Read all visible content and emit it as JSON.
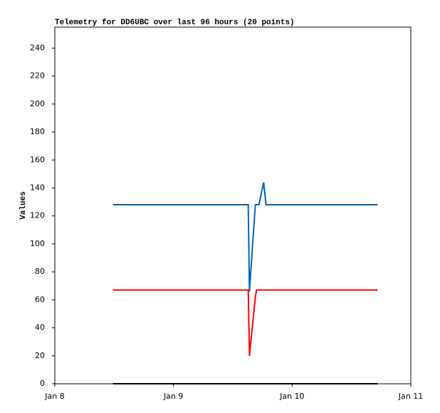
{
  "chart_data": {
    "type": "line",
    "title": "Telemetry for DD6UBC over last 96 hours (20 points)",
    "ylabel": "Values",
    "x": [
      8.49,
      8.7,
      8.9,
      9.1,
      9.3,
      9.5,
      9.63,
      9.635,
      9.64,
      9.69,
      9.7,
      9.72,
      9.76,
      9.78,
      9.9,
      10.1,
      10.3,
      10.5,
      10.6,
      10.72
    ],
    "series": [
      {
        "color": "#0066b3",
        "values": [
          128,
          128,
          128,
          128,
          128,
          128,
          128,
          96,
          66,
          128,
          128,
          128,
          144,
          128,
          128,
          128,
          128,
          128,
          128,
          128
        ]
      },
      {
        "color": "#ff0000",
        "values": [
          67,
          67,
          67,
          67,
          67,
          67,
          67,
          44,
          20,
          62,
          67,
          67,
          67,
          67,
          67,
          67,
          67,
          67,
          67,
          67
        ]
      },
      {
        "color": "#000000",
        "values": [
          0,
          0,
          0,
          0,
          0,
          0,
          0,
          0,
          0,
          0,
          0,
          0,
          0,
          0,
          0,
          0,
          0,
          0,
          0,
          0
        ]
      }
    ],
    "xlim": [
      8,
      11
    ],
    "xticks": [
      {
        "value": 8,
        "label": "Jan 8"
      },
      {
        "value": 9,
        "label": "Jan 9"
      },
      {
        "value": 10,
        "label": "Jan 10"
      },
      {
        "value": 11,
        "label": "Jan 11"
      }
    ],
    "ylim": [
      0,
      255
    ],
    "yticks": [
      0,
      20,
      40,
      60,
      80,
      100,
      120,
      140,
      160,
      180,
      200,
      220,
      240
    ]
  }
}
